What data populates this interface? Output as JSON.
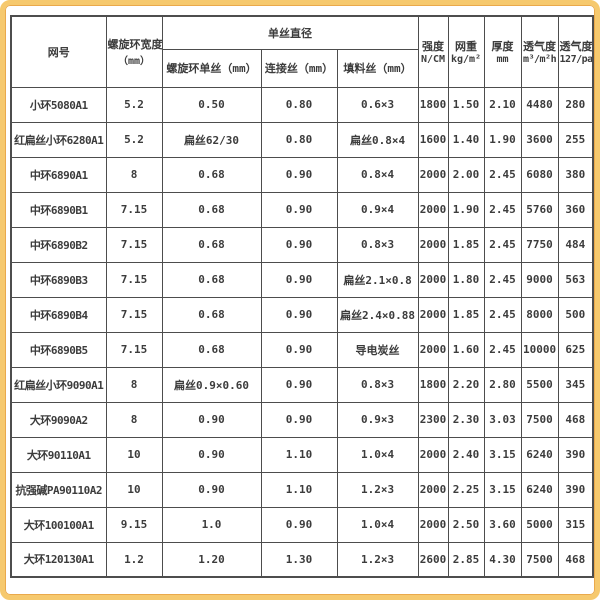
{
  "frame": {
    "border_color": "#f6c96e",
    "grid_color": "#4d4d4d"
  },
  "table": {
    "header": {
      "mesh_no": "网号",
      "ring_width_l1": "螺旋环宽度",
      "ring_width_l2": "（mm）",
      "diameter_group": "单丝直径",
      "sub_spiral_mono": "螺旋环单丝（mm）",
      "sub_connect": "连接丝（mm）",
      "sub_filler": "填料丝（mm）",
      "strength_l1": "强度",
      "strength_l2": "N/CM",
      "weight_l1": "网重",
      "weight_l2": "kg/m²",
      "thickness_l1": "厚度",
      "thickness_l2": "mm",
      "perm1_l1": "透气度",
      "perm1_l2": "m³/m²h",
      "perm2_l1": "透气度",
      "perm2_l2": "127/pa"
    },
    "rows": [
      [
        "小环5080A1",
        "5.2",
        "0.50",
        "0.80",
        "0.6×3",
        "1800",
        "1.50",
        "2.10",
        "4480",
        "280"
      ],
      [
        "红扁丝小环6280A1",
        "5.2",
        "扁丝62/30",
        "0.80",
        "扁丝0.8×4",
        "1600",
        "1.40",
        "1.90",
        "3600",
        "255"
      ],
      [
        "中环6890A1",
        "8",
        "0.68",
        "0.90",
        "0.8×4",
        "2000",
        "2.00",
        "2.45",
        "6080",
        "380"
      ],
      [
        "中环6890B1",
        "7.15",
        "0.68",
        "0.90",
        "0.9×4",
        "2000",
        "1.90",
        "2.45",
        "5760",
        "360"
      ],
      [
        "中环6890B2",
        "7.15",
        "0.68",
        "0.90",
        "0.8×3",
        "2000",
        "1.85",
        "2.45",
        "7750",
        "484"
      ],
      [
        "中环6890B3",
        "7.15",
        "0.68",
        "0.90",
        "扁丝2.1×0.8",
        "2000",
        "1.80",
        "2.45",
        "9000",
        "563"
      ],
      [
        "中环6890B4",
        "7.15",
        "0.68",
        "0.90",
        "扁丝2.4×0.88",
        "2000",
        "1.85",
        "2.45",
        "8000",
        "500"
      ],
      [
        "中环6890B5",
        "7.15",
        "0.68",
        "0.90",
        "导电炭丝",
        "2000",
        "1.60",
        "2.45",
        "10000",
        "625"
      ],
      [
        "红扁丝小环9090A1",
        "8",
        "扁丝0.9×0.60",
        "0.90",
        "0.8×3",
        "1800",
        "2.20",
        "2.80",
        "5500",
        "345"
      ],
      [
        "大环9090A2",
        "8",
        "0.90",
        "0.90",
        "0.9×3",
        "2300",
        "2.30",
        "3.03",
        "7500",
        "468"
      ],
      [
        "大环90110A1",
        "10",
        "0.90",
        "1.10",
        "1.0×4",
        "2000",
        "2.40",
        "3.15",
        "6240",
        "390"
      ],
      [
        "抗强碱PA90110A2",
        "10",
        "0.90",
        "1.10",
        "1.2×3",
        "2000",
        "2.25",
        "3.15",
        "6240",
        "390"
      ],
      [
        "大环100100A1",
        "9.15",
        "1.0",
        "0.90",
        "1.0×4",
        "2000",
        "2.50",
        "3.60",
        "5000",
        "315"
      ],
      [
        "大环120130A1",
        "1.2",
        "1.20",
        "1.30",
        "1.2×3",
        "2600",
        "2.85",
        "4.30",
        "7500",
        "468"
      ]
    ]
  }
}
